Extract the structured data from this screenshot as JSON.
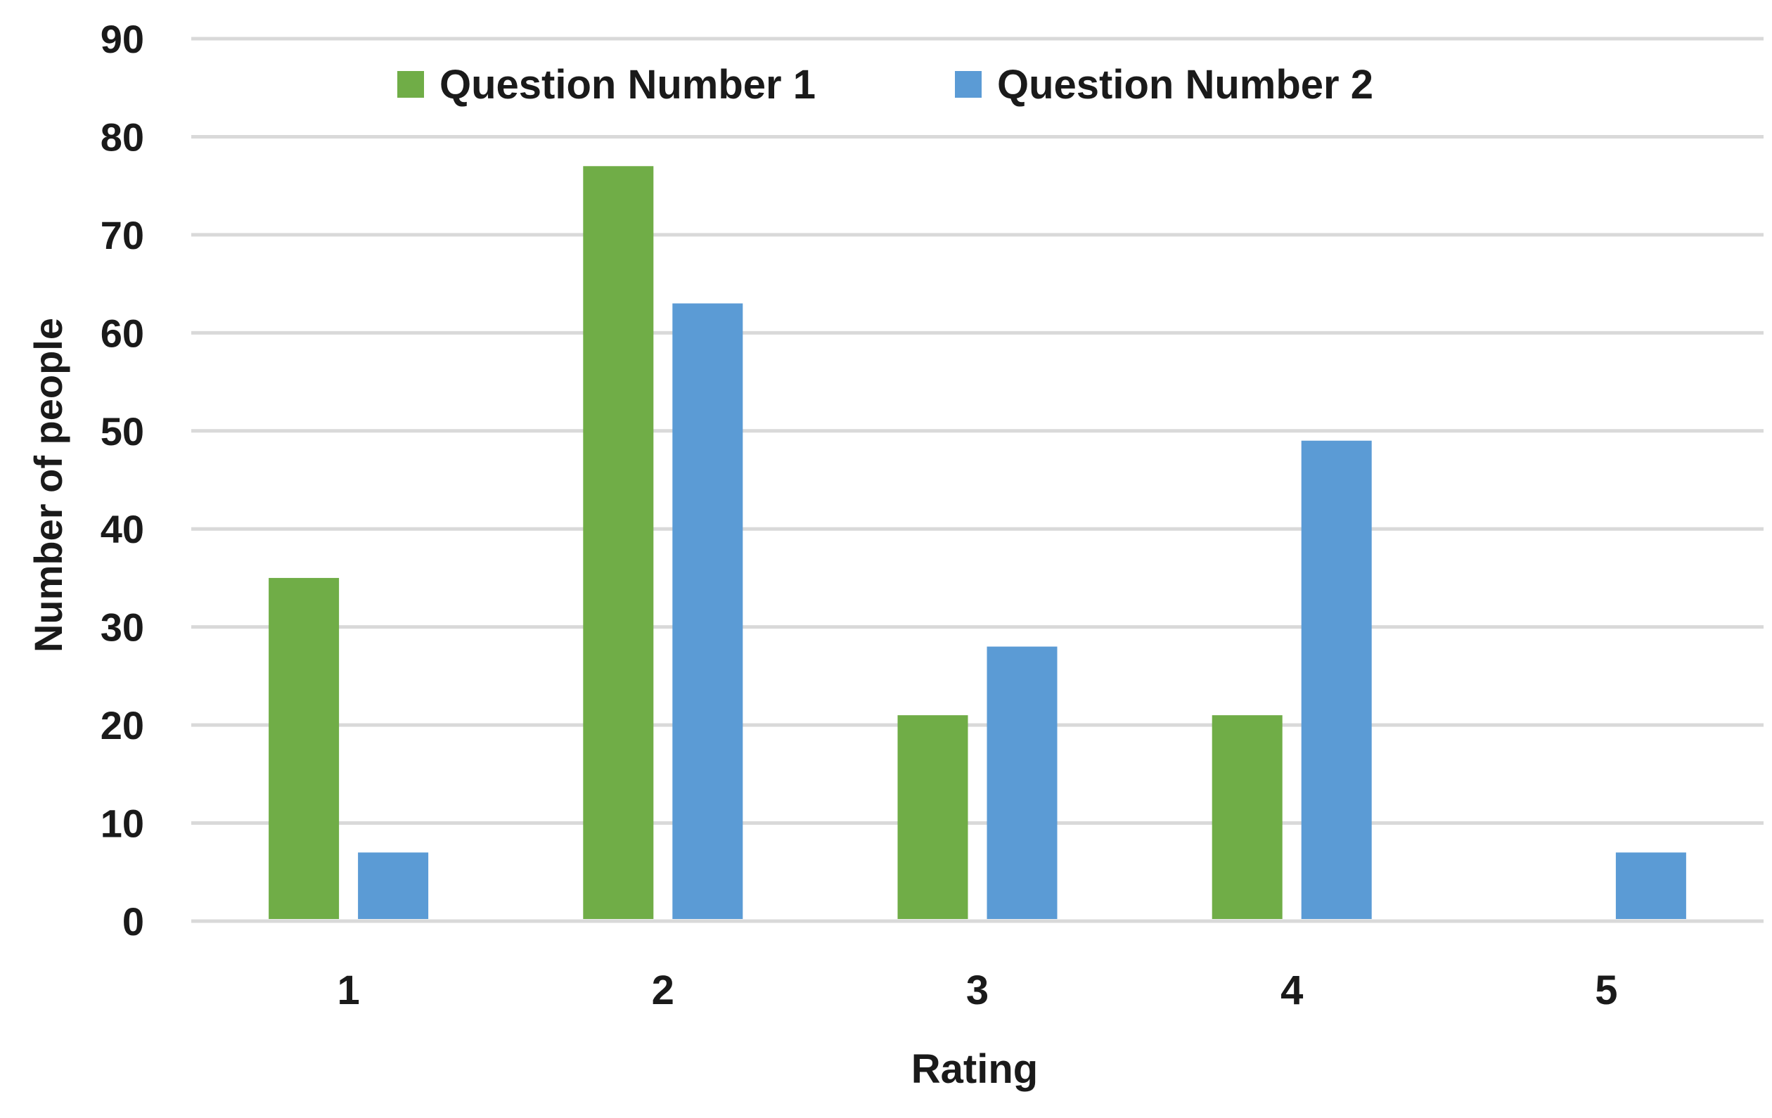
{
  "chart_data": {
    "type": "bar",
    "categories": [
      "1",
      "2",
      "3",
      "4",
      "5"
    ],
    "series": [
      {
        "name": "Question Number 1",
        "color": "#70AD47",
        "values": [
          35,
          77,
          21,
          21,
          0
        ]
      },
      {
        "name": "Question Number 2",
        "color": "#5B9BD5",
        "values": [
          7,
          63,
          28,
          49,
          7
        ]
      }
    ],
    "title": "",
    "xlabel": "Rating",
    "ylabel": "Number of people",
    "ylim": [
      0,
      90
    ],
    "yticks": [
      0,
      10,
      20,
      30,
      40,
      50,
      60,
      70,
      80,
      90
    ],
    "grid": true,
    "legend": "top-center",
    "gridline_color": "#D9D9D9"
  }
}
